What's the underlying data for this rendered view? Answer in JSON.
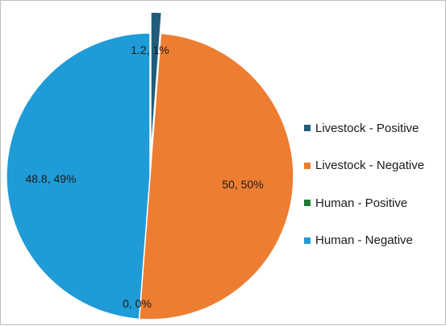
{
  "chart_data": {
    "type": "pie",
    "title": "",
    "slices": [
      {
        "name": "Livestock - Positive",
        "value": 1.2,
        "percent_label": "1%",
        "label": "1.2, 1%",
        "color": "#1f5d7a",
        "exploded": true
      },
      {
        "name": "Livestock - Negative",
        "value": 50,
        "percent_label": "50%",
        "label": "50, 50%",
        "color": "#ed7d31",
        "exploded": false
      },
      {
        "name": "Human - Positive",
        "value": 0,
        "percent_label": "0%",
        "label": "0, 0%",
        "color": "#1e7a35",
        "exploded": false
      },
      {
        "name": "Human - Negative",
        "value": 48.8,
        "percent_label": "49%",
        "label": "48.8, 49%",
        "color": "#1f9bd7",
        "exploded": false
      }
    ],
    "legend_position": "right"
  }
}
